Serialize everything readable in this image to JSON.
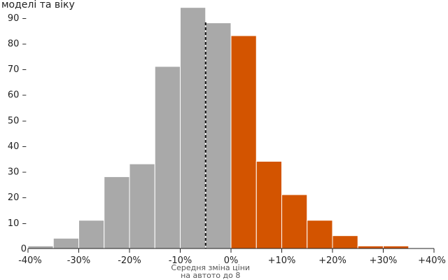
{
  "chart_data": {
    "type": "bar",
    "title": "моделі та віку",
    "bins": [
      {
        "from": -40,
        "to": -35,
        "value": 1
      },
      {
        "from": -35,
        "to": -30,
        "value": 4
      },
      {
        "from": -30,
        "to": -25,
        "value": 11
      },
      {
        "from": -25,
        "to": -20,
        "value": 28
      },
      {
        "from": -20,
        "to": -15,
        "value": 33
      },
      {
        "from": -15,
        "to": -10,
        "value": 71
      },
      {
        "from": -10,
        "to": -5,
        "value": 94
      },
      {
        "from": -5,
        "to": 0,
        "value": 88
      },
      {
        "from": 0,
        "to": 5,
        "value": 83
      },
      {
        "from": 5,
        "to": 10,
        "value": 34
      },
      {
        "from": 10,
        "to": 15,
        "value": 21
      },
      {
        "from": 15,
        "to": 20,
        "value": 11
      },
      {
        "from": 20,
        "to": 25,
        "value": 5
      },
      {
        "from": 25,
        "to": 30,
        "value": 1
      },
      {
        "from": 30,
        "to": 35,
        "value": 1
      }
    ],
    "xlim": [
      -40,
      40
    ],
    "ylim": [
      0,
      95
    ],
    "x_ticks": [
      -40,
      -30,
      -20,
      -10,
      0,
      10,
      20,
      30,
      40
    ],
    "x_tick_labels": [
      "-40%",
      "-30%",
      "-20%",
      "-10%",
      "0%",
      "+10%",
      "+20%",
      "+30%",
      "+40%"
    ],
    "y_ticks": [
      0,
      10,
      20,
      30,
      40,
      50,
      60,
      70,
      80,
      90
    ],
    "y_tick_labels": [
      "0",
      "10 –",
      "20 –",
      "30 –",
      "40 –",
      "50 –",
      "60 –",
      "70 –",
      "80 –",
      "90 –"
    ],
    "mean_line": {
      "x": -5,
      "label_lines": [
        "Середня зміна ціни",
        "на автото до 8"
      ]
    },
    "colors": {
      "negative": "#a9a9a9",
      "positive": "#d35400",
      "axis": "#222222",
      "mean_line": "#111111"
    },
    "grid": false
  }
}
